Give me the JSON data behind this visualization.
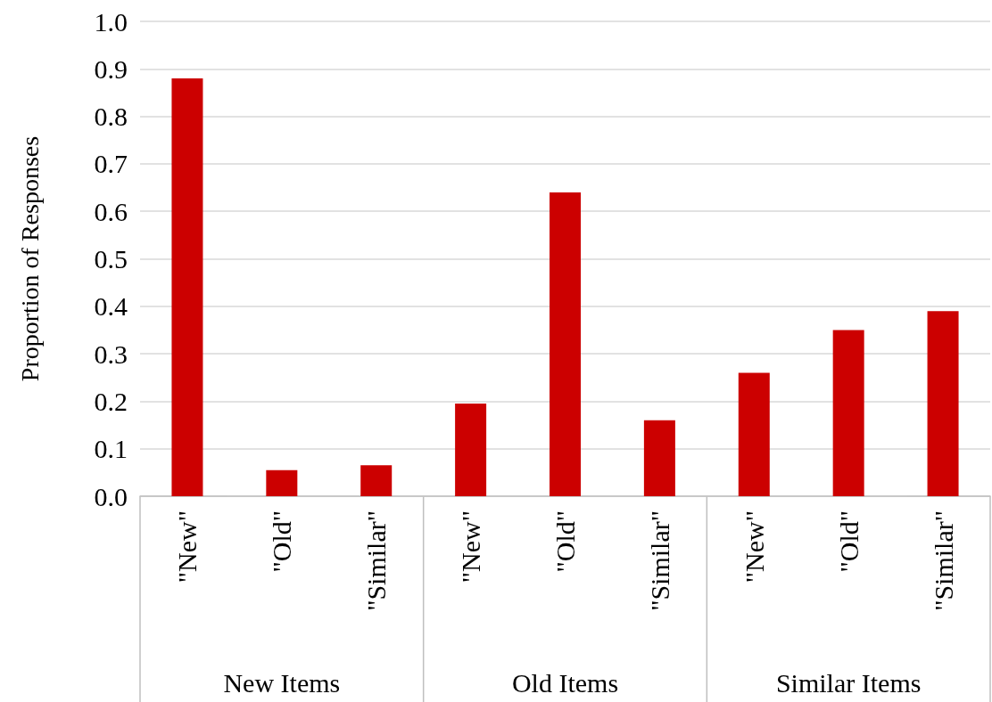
{
  "chart_data": {
    "type": "bar",
    "ylabel": "Proportion of Responses",
    "categories": [
      "\"New\"",
      "\"Old\"",
      "\"Similar\"",
      "\"New\"",
      "\"Old\"",
      "\"Similar\"",
      "\"New\"",
      "\"Old\"",
      "\"Similar\""
    ],
    "values": [
      0.88,
      0.055,
      0.065,
      0.195,
      0.64,
      0.16,
      0.26,
      0.35,
      0.39
    ],
    "color": "#cc0000",
    "annotations": [
      "New Items",
      "Old Items",
      "Similar Items"
    ],
    "ylim": [
      0,
      1
    ],
    "yticks": [
      {
        "value": 0,
        "label": "0.0"
      },
      {
        "value": 0.1,
        "label": "0.1"
      },
      {
        "value": 0.2,
        "label": "0.2"
      },
      {
        "value": 0.3,
        "label": "0.3"
      },
      {
        "value": 0.4,
        "label": "0.4"
      },
      {
        "value": 0.5,
        "label": "0.5"
      },
      {
        "value": 0.6,
        "label": "0.6"
      },
      {
        "value": 0.7,
        "label": "0.7"
      },
      {
        "value": 0.8,
        "label": "0.8"
      },
      {
        "value": 0.9,
        "label": "0.9"
      },
      {
        "value": 1,
        "label": "1.0"
      }
    ],
    "grid": "y"
  }
}
